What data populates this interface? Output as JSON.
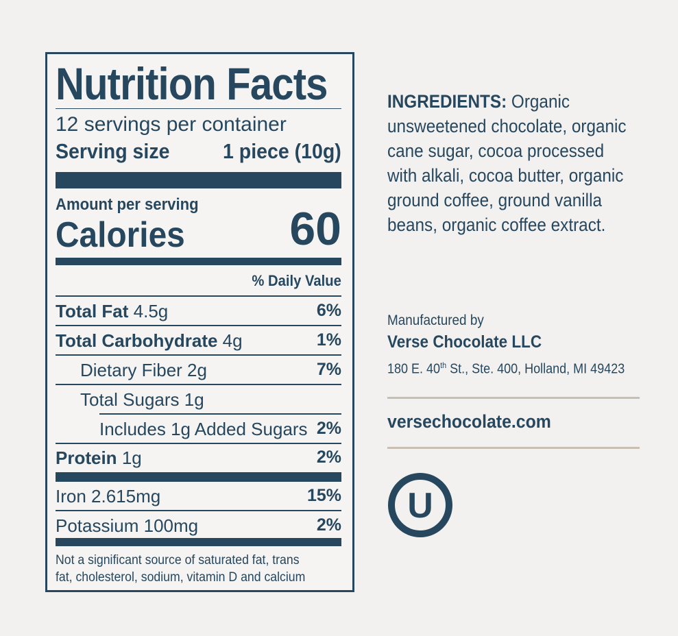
{
  "nutrition": {
    "title": "Nutrition Facts",
    "servings_per_container": "12 servings per container",
    "serving_size_label": "Serving size",
    "serving_size_value": "1 piece (10g)",
    "amount_per_serving": "Amount per serving",
    "calories_label": "Calories",
    "calories_value": "60",
    "daily_value_header": "% Daily Value",
    "rows": [
      {
        "label": "Total Fat",
        "amount": "4.5g",
        "dv": "6%"
      },
      {
        "label": "Total Carbohydrate",
        "amount": "4g",
        "dv": "1%"
      },
      {
        "label": "Dietary Fiber 2g",
        "amount": "",
        "dv": "7%"
      },
      {
        "label": "Total Sugars 1g",
        "amount": "",
        "dv": ""
      },
      {
        "label": "Includes 1g Added Sugars",
        "amount": "",
        "dv": "2%"
      },
      {
        "label": "Protein",
        "amount": "1g",
        "dv": "2%"
      },
      {
        "label": "Iron 2.615mg",
        "amount": "",
        "dv": "15%"
      },
      {
        "label": "Potassium 100mg",
        "amount": "",
        "dv": "2%"
      }
    ],
    "footnote_line1": "Not a significant source of saturated fat, trans",
    "footnote_line2": "fat, cholesterol, sodium, vitamin D and calcium"
  },
  "ingredients": {
    "label": "INGREDIENTS:",
    "line1": "Organic",
    "line2": "unsweetened chocolate, organic",
    "line3": "cane sugar, cocoa processed",
    "line4": "with alkali, cocoa butter, organic",
    "line5": "ground coffee, ground vanilla",
    "line6": "beans, organic coffee extract."
  },
  "manufacturer": {
    "intro": "Manufactured by",
    "name": "Verse Chocolate LLC",
    "address_pre": "180 E. 40",
    "address_sup": "th",
    "address_post": " St., Ste. 400, Holland, MI 49423"
  },
  "website": "versechocolate.com",
  "certification_symbol": "U",
  "colors": {
    "navy": "#26475e",
    "tan_rule": "#c7c0b2",
    "background": "#f2f1ef"
  }
}
